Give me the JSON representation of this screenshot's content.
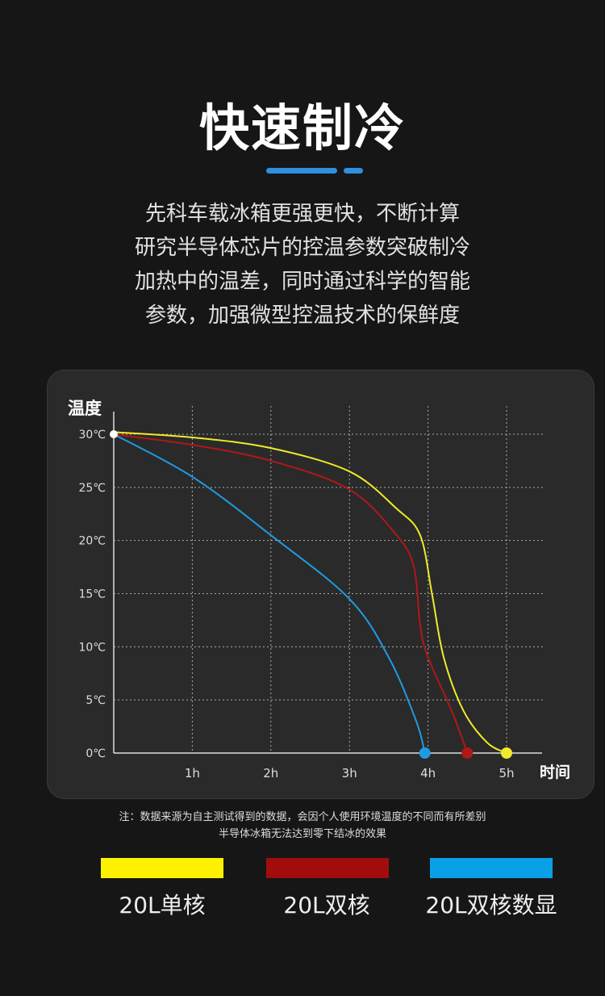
{
  "header": {
    "title": "快速制冷",
    "paragraph": [
      "先科车载冰箱更强更快，不断计算",
      "研究半导体芯片的控温参数突破制冷",
      "加热中的温差，同时通过科学的智能",
      "参数，加强微型控温技术的保鲜度"
    ]
  },
  "accent": "#2f8fe0",
  "chart_data": {
    "type": "line",
    "ylabel": "温度",
    "xlabel": "时间",
    "xticks": [
      "1h",
      "2h",
      "3h",
      "4h",
      "5h"
    ],
    "yticks": [
      "0℃",
      "5℃",
      "10℃",
      "15℃",
      "20℃",
      "25℃",
      "30℃"
    ],
    "xlim": [
      0,
      5
    ],
    "ylim": [
      0,
      30
    ],
    "grid": true,
    "series": [
      {
        "name": "20L单核",
        "color": "#f0ea2a",
        "x": [
          0,
          1,
          2,
          3,
          3.6,
          3.9,
          4.05,
          4.2,
          4.45,
          4.75,
          5
        ],
        "y": [
          30.2,
          29.7,
          28.7,
          26.5,
          23,
          20.5,
          15,
          9,
          4,
          1,
          0
        ]
      },
      {
        "name": "20L双核",
        "color": "#b01818",
        "x": [
          0,
          1,
          2,
          3,
          3.6,
          3.82,
          3.9,
          4.0,
          4.3,
          4.5
        ],
        "y": [
          30,
          29,
          27.5,
          24.8,
          20.5,
          17.5,
          12,
          9,
          4,
          0
        ]
      },
      {
        "name": "20L双核数显",
        "color": "#1e9be0",
        "x": [
          0,
          1,
          2,
          3,
          3.5,
          3.85,
          3.96
        ],
        "y": [
          30,
          26,
          20.5,
          14.5,
          9,
          3,
          0
        ]
      }
    ]
  },
  "note": [
    "注：数据来源为自主测试得到的数据，会因个人使用环境温度的不同而有所差别",
    "半导体冰箱无法达到零下结冰的效果"
  ],
  "legend": [
    {
      "label": "20L单核",
      "color": "#fff200"
    },
    {
      "label": "20L双核",
      "color": "#a10d0d"
    },
    {
      "label": "20L双核数显",
      "color": "#0aa0e8"
    }
  ]
}
